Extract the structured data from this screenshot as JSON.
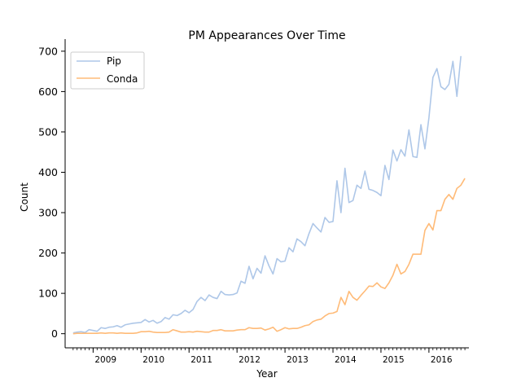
{
  "chart_data": {
    "type": "line",
    "title": "PM Appearances Over Time",
    "xlabel": "Year",
    "ylabel": "Count",
    "x_start": "2008-08",
    "x_step": "month",
    "xlim": [
      "2008-06",
      "2016-11"
    ],
    "ylim": [
      -35,
      730
    ],
    "yticks": [
      0,
      100,
      200,
      300,
      400,
      500,
      600,
      700
    ],
    "xticks": [
      {
        "label": "2009",
        "date": "2009-01"
      },
      {
        "label": "2010",
        "date": "2010-01"
      },
      {
        "label": "2011",
        "date": "2011-01"
      },
      {
        "label": "2012",
        "date": "2012-01"
      },
      {
        "label": "2013",
        "date": "2013-01"
      },
      {
        "label": "2014",
        "date": "2014-01"
      },
      {
        "label": "2015",
        "date": "2015-01"
      },
      {
        "label": "2016",
        "date": "2016-01"
      }
    ],
    "minor_ticks": "monthly",
    "grid": false,
    "legend_position": "top-left",
    "series": [
      {
        "name": "Pip",
        "color": "#aec7e8",
        "values": [
          2,
          4,
          5,
          3,
          10,
          8,
          6,
          15,
          13,
          16,
          17,
          20,
          16,
          22,
          24,
          26,
          27,
          28,
          35,
          29,
          33,
          26,
          30,
          40,
          36,
          47,
          45,
          50,
          58,
          52,
          60,
          80,
          90,
          82,
          96,
          90,
          87,
          105,
          97,
          96,
          97,
          101,
          130,
          125,
          167,
          136,
          162,
          150,
          193,
          168,
          148,
          186,
          178,
          180,
          213,
          203,
          235,
          228,
          218,
          248,
          273,
          262,
          252,
          288,
          276,
          278,
          379,
          300,
          410,
          325,
          330,
          368,
          360,
          403,
          358,
          355,
          350,
          342,
          417,
          382,
          455,
          428,
          456,
          440,
          505,
          439,
          437,
          518,
          458,
          535,
          635,
          657,
          612,
          605,
          618,
          675,
          588,
          688
        ]
      },
      {
        "name": "Conda",
        "color": "#ffbb78",
        "values": [
          0,
          1,
          1,
          1,
          1,
          1,
          1,
          2,
          1,
          2,
          2,
          1,
          2,
          1,
          1,
          1,
          2,
          5,
          5,
          6,
          4,
          3,
          3,
          3,
          4,
          10,
          7,
          4,
          4,
          5,
          4,
          6,
          5,
          4,
          4,
          8,
          8,
          10,
          7,
          7,
          7,
          9,
          10,
          10,
          15,
          13,
          13,
          14,
          9,
          12,
          16,
          6,
          10,
          15,
          12,
          13,
          13,
          16,
          20,
          22,
          30,
          34,
          36,
          44,
          50,
          51,
          55,
          90,
          72,
          105,
          90,
          83,
          95,
          106,
          118,
          117,
          126,
          116,
          112,
          126,
          145,
          172,
          148,
          154,
          172,
          197,
          197,
          197,
          256,
          273,
          257,
          305,
          305,
          333,
          345,
          333,
          360,
          368,
          385
        ]
      }
    ]
  }
}
